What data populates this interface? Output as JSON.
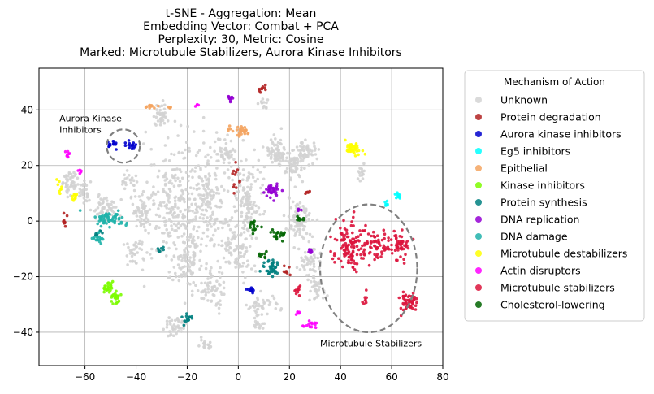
{
  "chart_data": {
    "type": "scatter",
    "title_lines": [
      "t-SNE - Aggregation: Mean",
      "Embedding Vector: Combat + PCA",
      "Perplexity: 30, Metric: Cosine",
      "Marked: Microtubule Stabilizers, Aurora Kinase Inhibitors"
    ],
    "xlabel": "",
    "ylabel": "",
    "xlim": [
      -78,
      80
    ],
    "ylim": [
      -52,
      55
    ],
    "xticks": [
      -60,
      -40,
      -20,
      0,
      20,
      40,
      60,
      80
    ],
    "yticks": [
      -40,
      -20,
      0,
      20,
      40
    ],
    "xtick_labels": [
      "−60",
      "−40",
      "−20",
      "0",
      "20",
      "40",
      "60",
      "80"
    ],
    "ytick_labels": [
      "−40",
      "−20",
      "0",
      "20",
      "40"
    ],
    "grid": true,
    "legend": {
      "title": "Mechanism of Action",
      "placement": "outside-right",
      "entries": [
        {
          "name": "Unknown",
          "color": "#d3d3d3"
        },
        {
          "name": "Protein degradation",
          "color": "#b22222"
        },
        {
          "name": "Aurora kinase inhibitors",
          "color": "#0000cd"
        },
        {
          "name": "Eg5 inhibitors",
          "color": "#00ffff"
        },
        {
          "name": "Epithelial",
          "color": "#f4a460"
        },
        {
          "name": "Kinase inhibitors",
          "color": "#7cfc00"
        },
        {
          "name": "Protein synthesis",
          "color": "#008080"
        },
        {
          "name": "DNA replication",
          "color": "#9400d3"
        },
        {
          "name": "DNA damage",
          "color": "#20b2aa"
        },
        {
          "name": "Microtubule destabilizers",
          "color": "#ffff00"
        },
        {
          "name": "Actin disruptors",
          "color": "#ff00ff"
        },
        {
          "name": "Microtubule stabilizers",
          "color": "#dc143c"
        },
        {
          "name": "Cholesterol-lowering",
          "color": "#006400"
        }
      ]
    },
    "series": [
      {
        "name": "Unknown",
        "color": "#d3d3d3",
        "clusters": [
          {
            "cx": -66,
            "cy": 14,
            "rx": 3,
            "ry": 5,
            "n": 50
          },
          {
            "cx": -60,
            "cy": 10,
            "rx": 2.5,
            "ry": 4,
            "n": 30
          },
          {
            "cx": -52,
            "cy": 5,
            "rx": 5,
            "ry": 4,
            "n": 60
          },
          {
            "cx": -38,
            "cy": 3,
            "rx": 4,
            "ry": 7,
            "n": 70
          },
          {
            "cx": -40,
            "cy": -12,
            "rx": 4,
            "ry": 5,
            "n": 40
          },
          {
            "cx": -30,
            "cy": 38,
            "rx": 3,
            "ry": 4,
            "n": 40
          },
          {
            "cx": -25,
            "cy": 5,
            "rx": 9,
            "ry": 22,
            "n": 230
          },
          {
            "cx": -20,
            "cy": -15,
            "rx": 5,
            "ry": 10,
            "n": 80
          },
          {
            "cx": -12,
            "cy": 8,
            "rx": 7,
            "ry": 18,
            "n": 170
          },
          {
            "cx": -10,
            "cy": -25,
            "rx": 5,
            "ry": 6,
            "n": 60
          },
          {
            "cx": -5,
            "cy": 25,
            "rx": 4,
            "ry": 5,
            "n": 50
          },
          {
            "cx": 0,
            "cy": -10,
            "rx": 6,
            "ry": 10,
            "n": 100
          },
          {
            "cx": 4,
            "cy": 8,
            "rx": 5,
            "ry": 12,
            "n": 120
          },
          {
            "cx": 15,
            "cy": 25,
            "rx": 4,
            "ry": 5,
            "n": 70
          },
          {
            "cx": 22,
            "cy": 20,
            "rx": 4,
            "ry": 5,
            "n": 60
          },
          {
            "cx": 27,
            "cy": 25,
            "rx": 3,
            "ry": 4,
            "n": 50
          },
          {
            "cx": 24,
            "cy": 0,
            "rx": 5,
            "ry": 7,
            "n": 80
          },
          {
            "cx": 28,
            "cy": -15,
            "rx": 4,
            "ry": 5,
            "n": 50
          },
          {
            "cx": 31,
            "cy": -25,
            "rx": 3,
            "ry": 4,
            "n": 30
          },
          {
            "cx": 10,
            "cy": -30,
            "rx": 5,
            "ry": 3,
            "n": 40
          },
          {
            "cx": -25,
            "cy": -38,
            "rx": 5,
            "ry": 3,
            "n": 40
          },
          {
            "cx": -13,
            "cy": -44,
            "rx": 2,
            "ry": 2,
            "n": 15
          },
          {
            "cx": 8,
            "cy": -37,
            "rx": 2,
            "ry": 2,
            "n": 15
          },
          {
            "cx": 48,
            "cy": 17,
            "rx": 2,
            "ry": 3,
            "n": 15
          },
          {
            "cx": -43,
            "cy": 15,
            "rx": 3,
            "ry": 3,
            "n": 20
          },
          {
            "cx": 10,
            "cy": 42,
            "rx": 2,
            "ry": 2,
            "n": 12
          }
        ]
      },
      {
        "name": "Protein degradation",
        "color": "#b22222",
        "clusters": [
          {
            "cx": 9,
            "cy": 48,
            "rx": 1.5,
            "ry": 1.5,
            "n": 10
          },
          {
            "cx": -1,
            "cy": 16,
            "rx": 1.5,
            "ry": 5,
            "n": 12
          },
          {
            "cx": -68,
            "cy": 0,
            "rx": 1,
            "ry": 3,
            "n": 10
          },
          {
            "cx": 18,
            "cy": -18,
            "rx": 1.5,
            "ry": 2,
            "n": 8
          },
          {
            "cx": 27,
            "cy": 10,
            "rx": 1.2,
            "ry": 1.2,
            "n": 5
          }
        ]
      },
      {
        "name": "Aurora kinase inhibitors",
        "color": "#0000cd",
        "clusters": [
          {
            "cx": -49.5,
            "cy": 28,
            "rx": 1.5,
            "ry": 1.5,
            "n": 15
          },
          {
            "cx": -42,
            "cy": 27.5,
            "rx": 2,
            "ry": 1.5,
            "n": 16
          },
          {
            "cx": 5,
            "cy": -25,
            "rx": 1.5,
            "ry": 1.2,
            "n": 10
          }
        ]
      },
      {
        "name": "Eg5 inhibitors",
        "color": "#00ffff",
        "clusters": [
          {
            "cx": 63,
            "cy": 9,
            "rx": 1.5,
            "ry": 1.2,
            "n": 10
          },
          {
            "cx": 58,
            "cy": 6.5,
            "rx": 1,
            "ry": 1,
            "n": 6
          }
        ]
      },
      {
        "name": "Epithelial",
        "color": "#f4a460",
        "clusters": [
          {
            "cx": 1.5,
            "cy": 32,
            "rx": 2.5,
            "ry": 1.5,
            "n": 25
          },
          {
            "cx": -3,
            "cy": 33,
            "rx": 1,
            "ry": 1,
            "n": 5
          },
          {
            "cx": -34,
            "cy": 41,
            "rx": 2,
            "ry": 1,
            "n": 10
          },
          {
            "cx": -27,
            "cy": 41,
            "rx": 1,
            "ry": 1,
            "n": 5
          }
        ]
      },
      {
        "name": "Kinase inhibitors",
        "color": "#7cfc00",
        "clusters": [
          {
            "cx": -51,
            "cy": -23.5,
            "rx": 2,
            "ry": 2,
            "n": 25
          },
          {
            "cx": -48,
            "cy": -27.5,
            "rx": 2,
            "ry": 2,
            "n": 25
          }
        ]
      },
      {
        "name": "Protein synthesis",
        "color": "#008080",
        "clusters": [
          {
            "cx": 13,
            "cy": -17,
            "rx": 3,
            "ry": 2.5,
            "n": 40
          },
          {
            "cx": -20,
            "cy": -35,
            "rx": 2,
            "ry": 2,
            "n": 15
          },
          {
            "cx": -55,
            "cy": -5,
            "rx": 1.5,
            "ry": 1.5,
            "n": 10
          },
          {
            "cx": -30,
            "cy": -10,
            "rx": 1.5,
            "ry": 1.5,
            "n": 8
          }
        ]
      },
      {
        "name": "DNA replication",
        "color": "#9400d3",
        "clusters": [
          {
            "cx": -3,
            "cy": 44,
            "rx": 1,
            "ry": 1.2,
            "n": 12
          },
          {
            "cx": 13,
            "cy": 11,
            "rx": 3,
            "ry": 2,
            "n": 35
          },
          {
            "cx": 28,
            "cy": -11,
            "rx": 1.5,
            "ry": 1,
            "n": 10
          },
          {
            "cx": 24,
            "cy": 4,
            "rx": 1,
            "ry": 1,
            "n": 5
          }
        ]
      },
      {
        "name": "DNA damage",
        "color": "#20b2aa",
        "clusters": [
          {
            "cx": -50,
            "cy": 1,
            "rx": 6,
            "ry": 2.5,
            "n": 60
          },
          {
            "cx": -55,
            "cy": -6,
            "rx": 2,
            "ry": 1.5,
            "n": 15
          }
        ]
      },
      {
        "name": "Microtubule destabilizers",
        "color": "#ffff00",
        "clusters": [
          {
            "cx": 45,
            "cy": 26,
            "rx": 3,
            "ry": 2,
            "n": 40
          },
          {
            "cx": -64,
            "cy": 9,
            "rx": 1.5,
            "ry": 2,
            "n": 10
          },
          {
            "cx": -70,
            "cy": 13,
            "rx": 1,
            "ry": 3,
            "n": 8
          }
        ]
      },
      {
        "name": "Actin disruptors",
        "color": "#ff00ff",
        "clusters": [
          {
            "cx": -67,
            "cy": 24,
            "rx": 0.8,
            "ry": 1.2,
            "n": 8
          },
          {
            "cx": 28,
            "cy": -37,
            "rx": 3,
            "ry": 1.2,
            "n": 15
          },
          {
            "cx": 23,
            "cy": -33,
            "rx": 1.5,
            "ry": 1,
            "n": 6
          },
          {
            "cx": -16,
            "cy": 42,
            "rx": 0.8,
            "ry": 0.5,
            "n": 4
          },
          {
            "cx": -62,
            "cy": 18,
            "rx": 1,
            "ry": 1,
            "n": 5
          }
        ]
      },
      {
        "name": "Microtubule stabilizers",
        "color": "#dc143c",
        "clusters": [
          {
            "cx": 43,
            "cy": -10,
            "rx": 6,
            "ry": 8,
            "n": 110
          },
          {
            "cx": 53,
            "cy": -9,
            "rx": 5,
            "ry": 5,
            "n": 60
          },
          {
            "cx": 63,
            "cy": -8,
            "rx": 4,
            "ry": 5,
            "n": 55
          },
          {
            "cx": 67,
            "cy": -29,
            "rx": 3,
            "ry": 3,
            "n": 55
          },
          {
            "cx": 50,
            "cy": -28,
            "rx": 1.5,
            "ry": 2,
            "n": 8
          },
          {
            "cx": 23,
            "cy": -25,
            "rx": 1.5,
            "ry": 2,
            "n": 10
          }
        ]
      },
      {
        "name": "Cholesterol-lowering",
        "color": "#006400",
        "clusters": [
          {
            "cx": 16,
            "cy": -5,
            "rx": 2.5,
            "ry": 2,
            "n": 20
          },
          {
            "cx": 6,
            "cy": -2,
            "rx": 3,
            "ry": 2,
            "n": 15
          },
          {
            "cx": 24,
            "cy": 1,
            "rx": 1.5,
            "ry": 1.5,
            "n": 8
          },
          {
            "cx": 10,
            "cy": -12,
            "rx": 2,
            "ry": 1.5,
            "n": 8
          }
        ]
      }
    ],
    "annotations": [
      {
        "text_lines": [
          "Aurora Kinase",
          "Inhibitors"
        ],
        "anchor_xy": [
          -70,
          37
        ],
        "ellipse": {
          "cx": -45,
          "cy": 27,
          "rx": 6.5,
          "ry": 6
        }
      },
      {
        "text_lines": [
          "Microtubule Stabilizers"
        ],
        "anchor_xy": [
          32,
          -44
        ],
        "ellipse": {
          "cx": 51,
          "cy": -17,
          "rx": 19,
          "ry": 23
        }
      }
    ]
  }
}
